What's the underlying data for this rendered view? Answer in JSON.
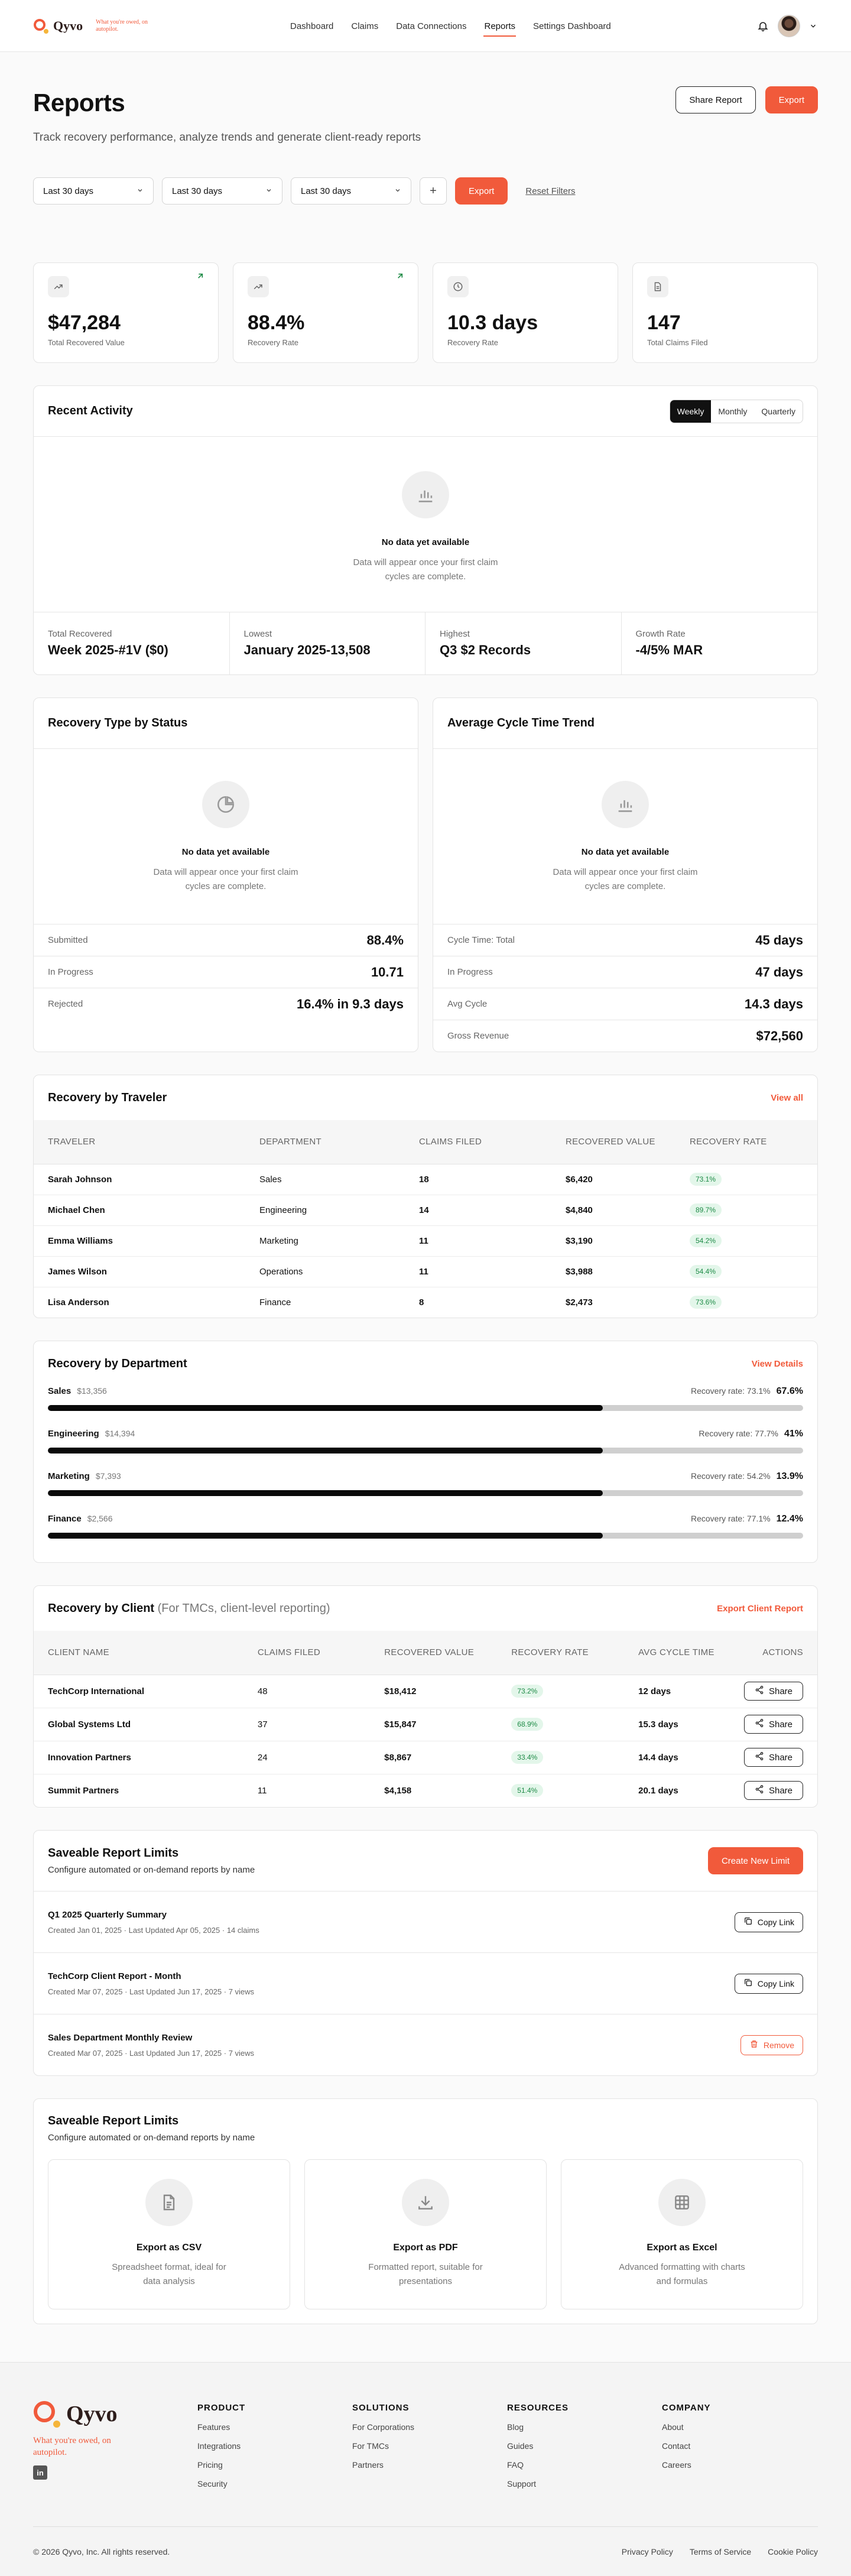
{
  "brand": {
    "name": "Qyvo",
    "tagline": "What you're owed, on autopilot."
  },
  "nav": {
    "links": [
      "Dashboard",
      "Claims",
      "Data Connections",
      "Reports",
      "Settings Dashboard"
    ],
    "active": "Reports"
  },
  "header": {
    "title": "Reports",
    "subtitle": "Track recovery performance, analyze trends and generate client-ready reports",
    "share_label": "Share Report",
    "export_label": "Export"
  },
  "filters": {
    "selects": [
      "Last 30 days",
      "Last 30 days",
      "Last 30 days"
    ],
    "add_label": "+",
    "export_label": "Export",
    "reset_label": "Reset Filters"
  },
  "stats": [
    {
      "value": "$47,284",
      "label": "Total Recovered Value",
      "icon": "trend-up-icon",
      "trend": true
    },
    {
      "value": "88.4%",
      "label": "Recovery Rate",
      "icon": "trend-up-icon",
      "trend": true
    },
    {
      "value": "10.3 days",
      "label": "Recovery Rate",
      "icon": "clock-icon",
      "trend": false
    },
    {
      "value": "147",
      "label": "Total Claims Filed",
      "icon": "document-icon",
      "trend": false
    }
  ],
  "recent_activity": {
    "title": "Recent Activity",
    "tabs": [
      "Weekly",
      "Monthly",
      "Quarterly"
    ],
    "active_tab": "Weekly",
    "empty_title": "No data yet available",
    "empty_text": "Data will appear once your first claim cycles are complete.",
    "summary": [
      {
        "label": "Total Recovered",
        "value": "Week 2025-#1V ($0)"
      },
      {
        "label": "Lowest",
        "value": "January 2025-13,508"
      },
      {
        "label": "Highest",
        "value": "Q3 $2 Records"
      },
      {
        "label": "Growth Rate",
        "value": "-4/5% MAR"
      }
    ]
  },
  "recovery_type": {
    "title": "Recovery Type by Status",
    "empty_title": "No data yet available",
    "empty_text": "Data will appear once your first claim cycles are complete.",
    "rows": [
      {
        "label": "Submitted",
        "value": "88.4%"
      },
      {
        "label": "In Progress",
        "value": "10.71"
      },
      {
        "label": "Rejected",
        "value": "16.4% in 9.3 days"
      }
    ]
  },
  "cycle_time": {
    "title": "Average Cycle Time Trend",
    "empty_title": "No data yet available",
    "empty_text": "Data will appear once your first claim cycles are complete.",
    "rows": [
      {
        "label": "Cycle Time: Total",
        "value": "45 days"
      },
      {
        "label": "In Progress",
        "value": "47 days"
      },
      {
        "label": "Avg Cycle",
        "value": "14.3 days"
      },
      {
        "label": "Gross Revenue",
        "value": "$72,560"
      }
    ]
  },
  "traveler": {
    "title": "Recovery by Traveler",
    "view_all": "View all",
    "columns": [
      "TRAVELER",
      "DEPARTMENT",
      "CLAIMS FILED",
      "RECOVERED VALUE",
      "RECOVERY RATE"
    ],
    "rows": [
      [
        "Sarah Johnson",
        "Sales",
        "18",
        "$6,420",
        "73.1%"
      ],
      [
        "Michael Chen",
        "Engineering",
        "14",
        "$4,840",
        "89.7%"
      ],
      [
        "Emma Williams",
        "Marketing",
        "11",
        "$3,190",
        "54.2%"
      ],
      [
        "James Wilson",
        "Operations",
        "11",
        "$3,988",
        "54.4%"
      ],
      [
        "Lisa Anderson",
        "Finance",
        "8",
        "$2,473",
        "73.6%"
      ]
    ]
  },
  "department": {
    "title": "Recovery by Department",
    "view_details": "View Details",
    "rate_prefix": "Recovery rate:",
    "rows": [
      {
        "name": "Sales",
        "amount": "$13,356",
        "rate": "73.1%",
        "share": "67.6%",
        "progress": 0.735
      },
      {
        "name": "Engineering",
        "amount": "$14,394",
        "rate": "77.7%",
        "share": "41%",
        "progress": 0.735
      },
      {
        "name": "Marketing",
        "amount": "$7,393",
        "rate": "54.2%",
        "share": "13.9%",
        "progress": 0.735
      },
      {
        "name": "Finance",
        "amount": "$2,566",
        "rate": "77.1%",
        "share": "12.4%",
        "progress": 0.735
      }
    ]
  },
  "client": {
    "title": "Recovery by Client",
    "subtitle": "(For TMCs, client-level reporting)",
    "export_label": "Export Client Report",
    "columns": [
      "CLIENT NAME",
      "CLAIMS FILED",
      "RECOVERED VALUE",
      "RECOVERY RATE",
      "AVG CYCLE TIME",
      "ACTIONS"
    ],
    "share_label": "Share",
    "rows": [
      [
        "TechCorp International",
        "48",
        "$18,412",
        "73.2%",
        "12 days"
      ],
      [
        "Global Systems Ltd",
        "37",
        "$15,847",
        "68.9%",
        "15.3 days"
      ],
      [
        "Innovation Partners",
        "24",
        "$8,867",
        "33.4%",
        "14.4 days"
      ],
      [
        "Summit Partners",
        "11",
        "$4,158",
        "51.4%",
        "20.1 days"
      ]
    ]
  },
  "saved_reports": {
    "title": "Saveable Report Limits",
    "subtitle": "Configure automated or on-demand reports by name",
    "create_label": "Create New Limit",
    "items": [
      {
        "title": "Q1 2025 Quarterly Summary",
        "meta": "Created Jan 01, 2025 · Last Updated Apr 05, 2025 · 14 claims",
        "action": "Copy Link",
        "danger": false
      },
      {
        "title": "TechCorp Client Report - Month",
        "meta": "Created Mar 07, 2025 · Last Updated Jun 17, 2025 · 7 views",
        "action": "Copy Link",
        "danger": false
      },
      {
        "title": "Sales Department Monthly Review",
        "meta": "Created Mar 07, 2025 · Last Updated Jun 17, 2025 · 7 views",
        "action": "Remove",
        "danger": true
      }
    ]
  },
  "export_options": {
    "title": "Saveable Report Limits",
    "subtitle": "Configure automated or on-demand reports by name",
    "cards": [
      {
        "title": "Export as CSV",
        "desc": "Spreadsheet format, ideal for data analysis",
        "icon": "document-icon"
      },
      {
        "title": "Export as PDF",
        "desc": "Formatted report, suitable for presentations",
        "icon": "download-icon"
      },
      {
        "title": "Export as Excel",
        "desc": "Advanced formatting with charts and formulas",
        "icon": "grid-icon"
      }
    ]
  },
  "footer": {
    "brand": "Qyvo",
    "tagline": "What you're owed, on autopilot.",
    "linkedin": "in",
    "columns": [
      {
        "heading": "PRODUCT",
        "links": [
          "Features",
          "Integrations",
          "Pricing",
          "Security"
        ]
      },
      {
        "heading": "SOLUTIONS",
        "links": [
          "For Corporations",
          "For TMCs",
          "Partners"
        ]
      },
      {
        "heading": "RESOURCES",
        "links": [
          "Blog",
          "Guides",
          "FAQ",
          "Support"
        ]
      },
      {
        "heading": "COMPANY",
        "links": [
          "About",
          "Contact",
          "Careers"
        ]
      }
    ],
    "copyright": "© 2026 Qyvo, Inc. All rights reserved.",
    "legal": [
      "Privacy Policy",
      "Terms of Service",
      "Cookie Policy"
    ]
  },
  "colors": {
    "accent": "#f15a3b",
    "accent_secondary": "#f5b53b",
    "success_bg": "#e3f6ea",
    "success_text": "#1c8a45"
  }
}
